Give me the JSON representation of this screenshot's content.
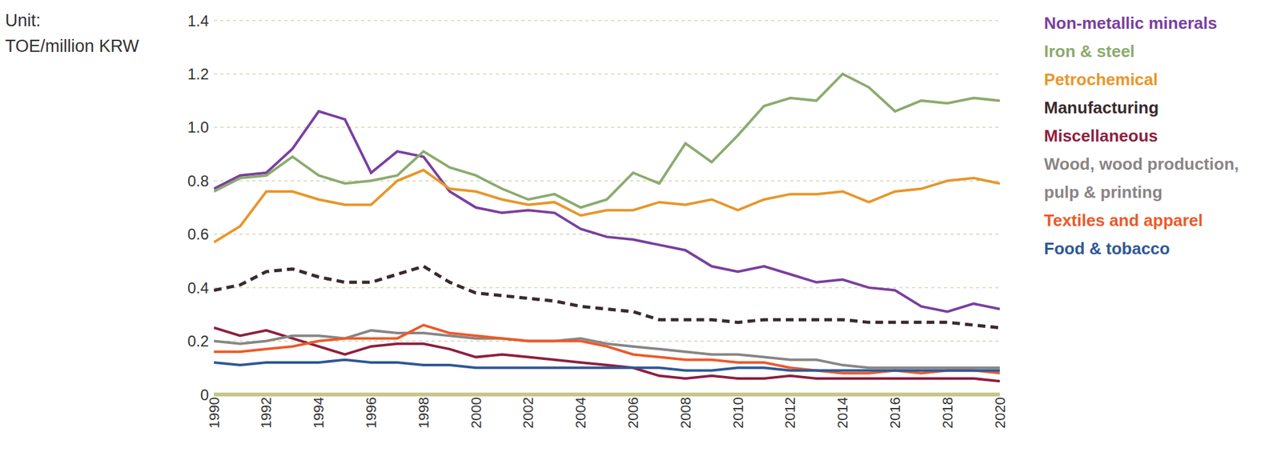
{
  "chart_data": {
    "type": "line",
    "y_label": "Unit:\nTOE/million KRW",
    "x": [
      1990,
      1991,
      1992,
      1993,
      1994,
      1995,
      1996,
      1997,
      1998,
      1999,
      2000,
      2001,
      2002,
      2003,
      2004,
      2005,
      2006,
      2007,
      2008,
      2009,
      2010,
      2011,
      2012,
      2013,
      2014,
      2015,
      2016,
      2017,
      2018,
      2019,
      2020
    ],
    "xlim": [
      1990,
      2020
    ],
    "xticks": [
      1990,
      1992,
      1994,
      1996,
      1998,
      2000,
      2002,
      2004,
      2006,
      2008,
      2010,
      2012,
      2014,
      2016,
      2018,
      2020
    ],
    "ylim": [
      0,
      1.4
    ],
    "yticks": [
      0,
      0.2,
      0.4,
      0.6,
      0.8,
      {
        "value": 1,
        "label": "1.0"
      },
      1.2,
      1.4
    ],
    "grid": true,
    "legend": "right",
    "series": [
      {
        "name": "Non-metallic minerals",
        "color": "#7b3f9e",
        "line_style": "solid",
        "values": [
          0.77,
          0.82,
          0.83,
          0.92,
          1.06,
          1.03,
          0.83,
          0.91,
          0.89,
          0.76,
          0.7,
          0.68,
          0.69,
          0.68,
          0.62,
          0.59,
          0.58,
          0.56,
          0.54,
          0.48,
          0.46,
          0.48,
          0.45,
          0.42,
          0.43,
          0.4,
          0.39,
          0.33,
          0.31,
          0.34,
          0.32
        ]
      },
      {
        "name": "Iron & steel",
        "color": "#8bab6e",
        "line_style": "solid",
        "values": [
          0.76,
          0.81,
          0.82,
          0.89,
          0.82,
          0.79,
          0.8,
          0.82,
          0.91,
          0.85,
          0.82,
          0.77,
          0.73,
          0.75,
          0.7,
          0.73,
          0.83,
          0.79,
          0.94,
          0.87,
          0.97,
          1.08,
          1.11,
          1.1,
          1.2,
          1.15,
          1.06,
          1.1,
          1.09,
          1.11,
          1.1
        ]
      },
      {
        "name": "Petrochemical",
        "color": "#e8962a",
        "line_style": "solid",
        "values": [
          0.57,
          0.63,
          0.76,
          0.76,
          0.73,
          0.71,
          0.71,
          0.8,
          0.84,
          0.77,
          0.76,
          0.73,
          0.71,
          0.72,
          0.67,
          0.69,
          0.69,
          0.72,
          0.71,
          0.73,
          0.69,
          0.73,
          0.75,
          0.75,
          0.76,
          0.72,
          0.76,
          0.77,
          0.8,
          0.81,
          0.79
        ]
      },
      {
        "name": "Manufacturing",
        "color": "#3a2a2d",
        "line_style": "dashed",
        "values": [
          0.39,
          0.41,
          0.46,
          0.47,
          0.44,
          0.42,
          0.42,
          0.45,
          0.48,
          0.42,
          0.38,
          0.37,
          0.36,
          0.35,
          0.33,
          0.32,
          0.31,
          0.28,
          0.28,
          0.28,
          0.27,
          0.28,
          0.28,
          0.28,
          0.28,
          0.27,
          0.27,
          0.27,
          0.27,
          0.26,
          0.25
        ]
      },
      {
        "name": "Miscellaneous",
        "color": "#8e1f3f",
        "line_style": "solid",
        "values": [
          0.25,
          0.22,
          0.24,
          0.21,
          0.18,
          0.15,
          0.18,
          0.19,
          0.19,
          0.17,
          0.14,
          0.15,
          0.14,
          0.13,
          0.12,
          0.11,
          0.1,
          0.07,
          0.06,
          0.07,
          0.06,
          0.06,
          0.07,
          0.06,
          0.06,
          0.06,
          0.06,
          0.06,
          0.06,
          0.06,
          0.05
        ]
      },
      {
        "name": "Wood, wood production, pulp & printing",
        "color": "#8a8585",
        "line_style": "solid",
        "values": [
          0.2,
          0.19,
          0.2,
          0.22,
          0.22,
          0.21,
          0.24,
          0.23,
          0.23,
          0.22,
          0.21,
          0.21,
          0.2,
          0.2,
          0.21,
          0.19,
          0.18,
          0.17,
          0.16,
          0.15,
          0.15,
          0.14,
          0.13,
          0.13,
          0.11,
          0.1,
          0.1,
          0.1,
          0.1,
          0.1,
          0.1
        ]
      },
      {
        "name": "Textiles and apparel",
        "color": "#ec5a2a",
        "line_style": "solid",
        "values": [
          0.16,
          0.16,
          0.17,
          0.18,
          0.2,
          0.21,
          0.21,
          0.21,
          0.26,
          0.23,
          0.22,
          0.21,
          0.2,
          0.2,
          0.2,
          0.18,
          0.15,
          0.14,
          0.13,
          0.13,
          0.12,
          0.12,
          0.1,
          0.09,
          0.08,
          0.08,
          0.09,
          0.08,
          0.09,
          0.09,
          0.08
        ]
      },
      {
        "name": "Food & tobacco",
        "color": "#2f5896",
        "line_style": "solid",
        "values": [
          0.12,
          0.11,
          0.12,
          0.12,
          0.12,
          0.13,
          0.12,
          0.12,
          0.11,
          0.11,
          0.1,
          0.1,
          0.1,
          0.1,
          0.1,
          0.1,
          0.1,
          0.1,
          0.09,
          0.09,
          0.1,
          0.1,
          0.09,
          0.09,
          0.09,
          0.09,
          0.09,
          0.09,
          0.09,
          0.09,
          0.09
        ]
      }
    ]
  }
}
